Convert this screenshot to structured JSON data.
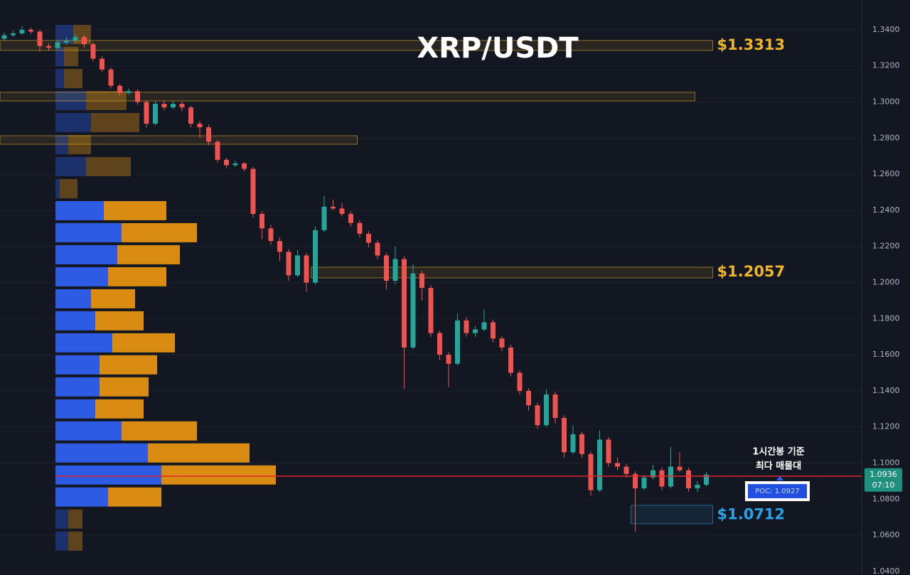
{
  "chart_data": {
    "type": "candlestick",
    "title": "XRP/USDT",
    "ylim": [
      1.038,
      1.3565
    ],
    "yticks": [
      {
        "value": 1.04,
        "label": "1.0400"
      },
      {
        "value": 1.06,
        "label": "1.0600"
      },
      {
        "value": 1.08,
        "label": "1.0800"
      },
      {
        "value": 1.1,
        "label": "1.1000"
      },
      {
        "value": 1.12,
        "label": "1.1200"
      },
      {
        "value": 1.14,
        "label": "1.1400"
      },
      {
        "value": 1.16,
        "label": "1.1600"
      },
      {
        "value": 1.18,
        "label": "1.1800"
      },
      {
        "value": 1.2,
        "label": "1.2000"
      },
      {
        "value": 1.22,
        "label": "1.2200"
      },
      {
        "value": 1.24,
        "label": "1.2400"
      },
      {
        "value": 1.26,
        "label": "1.2600"
      },
      {
        "value": 1.28,
        "label": "1.2800"
      },
      {
        "value": 1.3,
        "label": "1.3000"
      },
      {
        "value": 1.32,
        "label": "1.3200"
      },
      {
        "value": 1.34,
        "label": "1.3400"
      }
    ],
    "up_color": "#26a69a",
    "down_color": "#ef5350",
    "candles": [
      [
        1.335,
        1.3385,
        1.334,
        1.337
      ],
      [
        1.337,
        1.3395,
        1.336,
        1.338
      ],
      [
        1.338,
        1.342,
        1.3372,
        1.34
      ],
      [
        1.34,
        1.3412,
        1.3375,
        1.339
      ],
      [
        1.339,
        1.3398,
        1.328,
        1.331
      ],
      [
        1.331,
        1.3325,
        1.3285,
        1.33
      ],
      [
        1.33,
        1.3345,
        1.3292,
        1.333
      ],
      [
        1.333,
        1.336,
        1.3318,
        1.334
      ],
      [
        1.334,
        1.338,
        1.333,
        1.336
      ],
      [
        1.336,
        1.3372,
        1.33,
        1.332
      ],
      [
        1.332,
        1.333,
        1.3225,
        1.324
      ],
      [
        1.324,
        1.3255,
        1.3165,
        1.318
      ],
      [
        1.318,
        1.319,
        1.3075,
        1.309
      ],
      [
        1.309,
        1.31,
        1.3035,
        1.305
      ],
      [
        1.305,
        1.3075,
        1.304,
        1.306
      ],
      [
        1.306,
        1.307,
        1.2985,
        1.3
      ],
      [
        1.3,
        1.3012,
        1.286,
        1.288
      ],
      [
        1.288,
        1.3005,
        1.287,
        1.299
      ],
      [
        1.299,
        1.301,
        1.2955,
        1.297
      ],
      [
        1.297,
        1.3008,
        1.296,
        1.299
      ],
      [
        1.299,
        1.3005,
        1.295,
        1.297
      ],
      [
        1.297,
        1.298,
        1.286,
        1.288
      ],
      [
        1.288,
        1.2895,
        1.28,
        1.286
      ],
      [
        1.286,
        1.2875,
        1.276,
        1.278
      ],
      [
        1.278,
        1.279,
        1.2665,
        1.268
      ],
      [
        1.268,
        1.269,
        1.2635,
        1.265
      ],
      [
        1.265,
        1.2675,
        1.264,
        1.266
      ],
      [
        1.266,
        1.2668,
        1.2615,
        1.263
      ],
      [
        1.263,
        1.264,
        1.236,
        1.238
      ],
      [
        1.238,
        1.2395,
        1.224,
        1.23
      ],
      [
        1.23,
        1.232,
        1.221,
        1.223
      ],
      [
        1.223,
        1.225,
        1.212,
        1.217
      ],
      [
        1.217,
        1.2185,
        1.201,
        1.204
      ],
      [
        1.204,
        1.218,
        1.203,
        1.215
      ],
      [
        1.215,
        1.2165,
        1.195,
        1.2
      ],
      [
        1.2,
        1.231,
        1.199,
        1.229
      ],
      [
        1.229,
        1.248,
        1.228,
        1.242
      ],
      [
        1.242,
        1.246,
        1.24,
        1.241
      ],
      [
        1.241,
        1.244,
        1.2365,
        1.238
      ],
      [
        1.238,
        1.2395,
        1.231,
        1.233
      ],
      [
        1.233,
        1.2345,
        1.225,
        1.227
      ],
      [
        1.227,
        1.2285,
        1.2195,
        1.222
      ],
      [
        1.222,
        1.2235,
        1.213,
        1.215
      ],
      [
        1.215,
        1.2165,
        1.196,
        1.201
      ],
      [
        1.201,
        1.22,
        1.199,
        1.213
      ],
      [
        1.213,
        1.2145,
        1.141,
        1.164
      ],
      [
        1.164,
        1.21,
        1.163,
        1.205
      ],
      [
        1.205,
        1.2065,
        1.19,
        1.197
      ],
      [
        1.197,
        1.1985,
        1.17,
        1.172
      ],
      [
        1.172,
        1.1735,
        1.157,
        1.16
      ],
      [
        1.16,
        1.1615,
        1.142,
        1.155
      ],
      [
        1.155,
        1.183,
        1.154,
        1.179
      ],
      [
        1.179,
        1.181,
        1.17,
        1.172
      ],
      [
        1.172,
        1.176,
        1.17,
        1.174
      ],
      [
        1.174,
        1.185,
        1.173,
        1.178
      ],
      [
        1.178,
        1.1795,
        1.167,
        1.169
      ],
      [
        1.169,
        1.1705,
        1.162,
        1.164
      ],
      [
        1.164,
        1.1655,
        1.148,
        1.15
      ],
      [
        1.15,
        1.1515,
        1.138,
        1.14
      ],
      [
        1.14,
        1.1415,
        1.129,
        1.132
      ],
      [
        1.132,
        1.1335,
        1.119,
        1.121
      ],
      [
        1.121,
        1.141,
        1.12,
        1.138
      ],
      [
        1.138,
        1.1395,
        1.122,
        1.125
      ],
      [
        1.125,
        1.1265,
        1.103,
        1.106
      ],
      [
        1.106,
        1.121,
        1.105,
        1.116
      ],
      [
        1.116,
        1.1175,
        1.103,
        1.105
      ],
      [
        1.105,
        1.1065,
        1.082,
        1.085
      ],
      [
        1.085,
        1.118,
        1.084,
        1.113
      ],
      [
        1.113,
        1.1145,
        1.098,
        1.1
      ],
      [
        1.1,
        1.103,
        1.096,
        1.098
      ],
      [
        1.098,
        1.0995,
        1.092,
        1.094
      ],
      [
        1.094,
        1.0955,
        1.062,
        1.086
      ],
      [
        1.086,
        1.0935,
        1.085,
        1.092
      ],
      [
        1.092,
        1.099,
        1.091,
        1.096
      ],
      [
        1.096,
        1.0975,
        1.085,
        1.087
      ],
      [
        1.087,
        1.109,
        1.086,
        1.098
      ],
      [
        1.098,
        1.106,
        1.095,
        1.096
      ],
      [
        1.096,
        1.0975,
        1.084,
        1.086
      ],
      [
        1.086,
        1.09,
        1.084,
        1.088
      ],
      [
        1.088,
        1.095,
        1.087,
        1.0936
      ]
    ],
    "volume_profile": {
      "bucket_prices": [
        1.3374,
        1.3252,
        1.313,
        1.3008,
        1.2886,
        1.2764,
        1.2642,
        1.252,
        1.2398,
        1.2276,
        1.2154,
        1.2032,
        1.191,
        1.1788,
        1.1666,
        1.1544,
        1.1422,
        1.13,
        1.1178,
        1.1056,
        1.0934,
        1.0812,
        1.069,
        1.0568
      ],
      "buy": [
        25,
        12,
        12,
        43,
        50,
        18,
        43,
        6,
        68,
        93,
        87,
        74,
        50,
        56,
        80,
        62,
        62,
        56,
        93,
        130,
        149,
        74,
        18,
        18
      ],
      "sell": [
        25,
        20,
        26,
        57,
        68,
        32,
        63,
        25,
        88,
        106,
        88,
        82,
        62,
        68,
        88,
        81,
        69,
        68,
        106,
        143,
        161,
        75,
        20,
        20
      ],
      "buy_color": "#2d5be3",
      "sell_color": "#d98b12",
      "value_area": [
        1.0751,
        1.2459
      ]
    },
    "zones": [
      {
        "value": 1.3313,
        "label": "$1.3313",
        "low": 1.3286,
        "high": 1.3341,
        "start": 0,
        "end": 79,
        "color": "#f0b429"
      },
      {
        "low": 1.3006,
        "high": 1.3054,
        "start": 0,
        "end": 77,
        "color": "#f0b429"
      },
      {
        "low": 1.2766,
        "high": 1.2813,
        "start": 0,
        "end": 39,
        "color": "#f0b429"
      },
      {
        "value": 1.2057,
        "label": "$1.2057",
        "low": 1.2026,
        "high": 1.2085,
        "start": 35,
        "end": 79,
        "color": "#f0b429"
      },
      {
        "value": 1.0712,
        "label": "$1.0712",
        "low": 1.0664,
        "high": 1.0766,
        "start": 71,
        "end": 79,
        "color": "#29a3e8"
      }
    ],
    "poc": {
      "value": 1.0927,
      "label": "POC: 1.0927"
    },
    "last_price": 1.0936,
    "countdown": "07:10",
    "annotation": [
      "1시간봉 기준",
      "최다 매물대"
    ]
  }
}
